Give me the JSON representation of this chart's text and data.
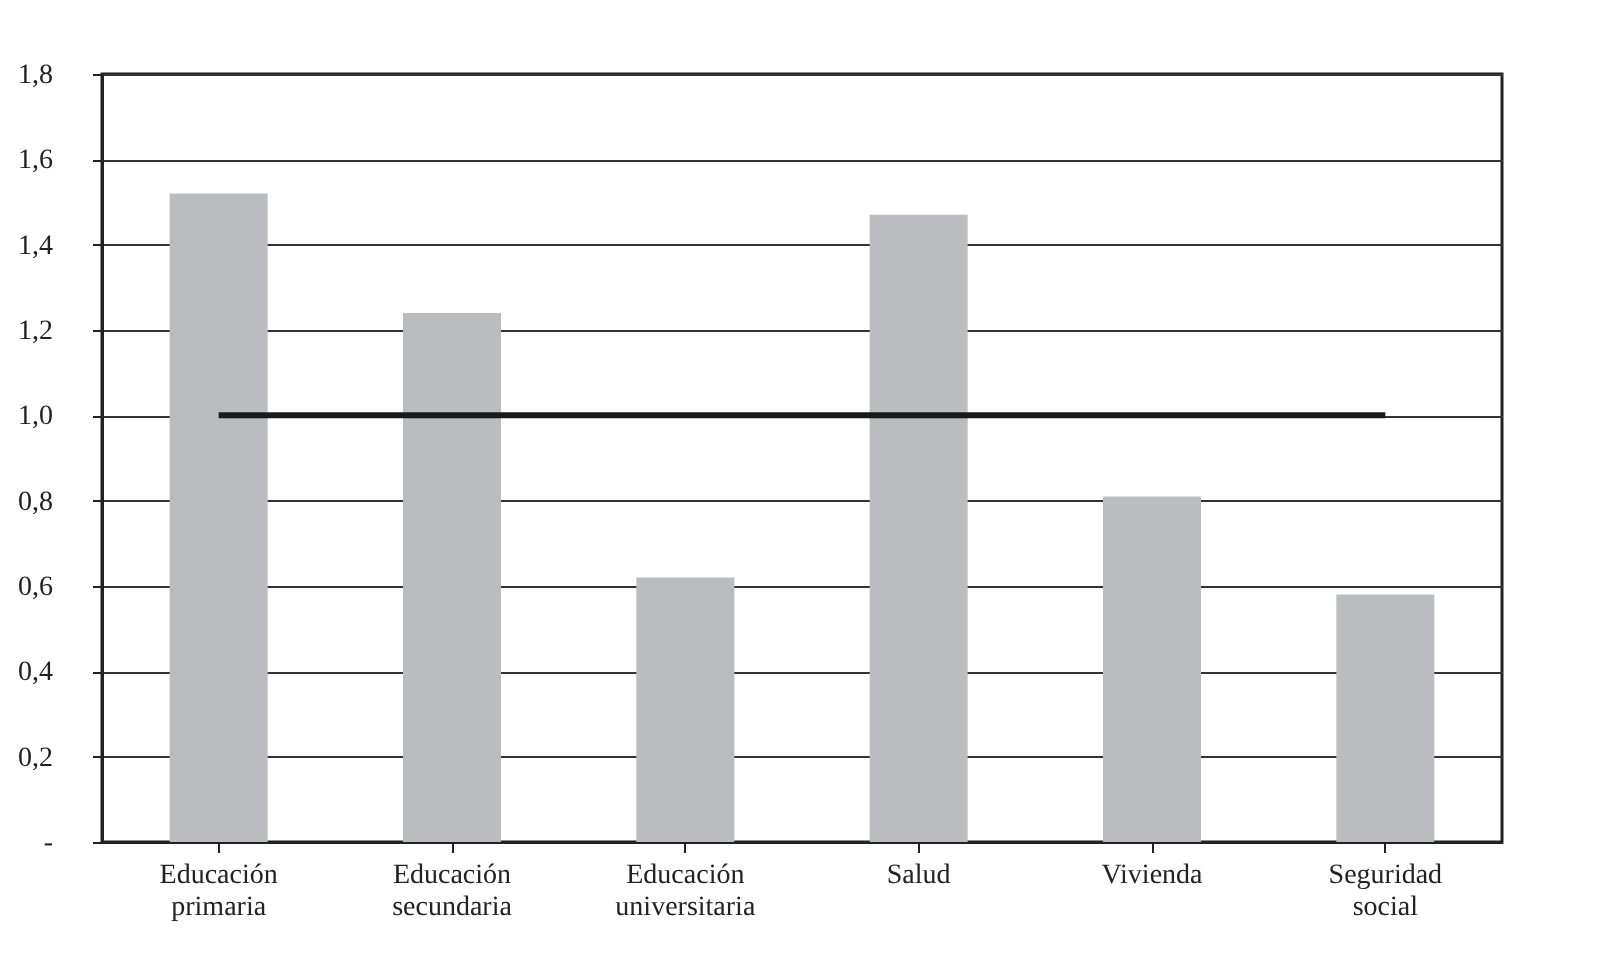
{
  "chart_data": {
    "type": "bar",
    "categories": [
      "Educación primaria",
      "Educación secundaria",
      "Educación universitaria",
      "Salud",
      "Vivienda",
      "Seguridad social"
    ],
    "series": [
      {
        "color": "#bbbcc0",
        "values": [
          1.52,
          1.24,
          0.62,
          1.47,
          0.81,
          0.58
        ]
      },
      {
        "type": "line",
        "color": "#1a1a1a",
        "values": [
          1.0,
          1.0,
          1.0,
          1.0,
          1.0,
          1.0
        ]
      }
    ],
    "ylim": [
      0,
      1.8
    ],
    "yticks": [
      {
        "value": 0,
        "label": "-"
      },
      {
        "value": 0.2,
        "label": "0,2"
      },
      {
        "value": 0.4,
        "label": "0,4"
      },
      {
        "value": 0.6,
        "label": "0,6"
      },
      {
        "value": 0.8,
        "label": "0,8"
      },
      {
        "value": 1.0,
        "label": "1,0"
      },
      {
        "value": 1.2,
        "label": "1,2"
      },
      {
        "value": 1.4,
        "label": "1,4"
      },
      {
        "value": 1.6,
        "label": "1,6"
      },
      {
        "value": 1.8,
        "label": "1,8"
      }
    ],
    "grid": "y"
  }
}
